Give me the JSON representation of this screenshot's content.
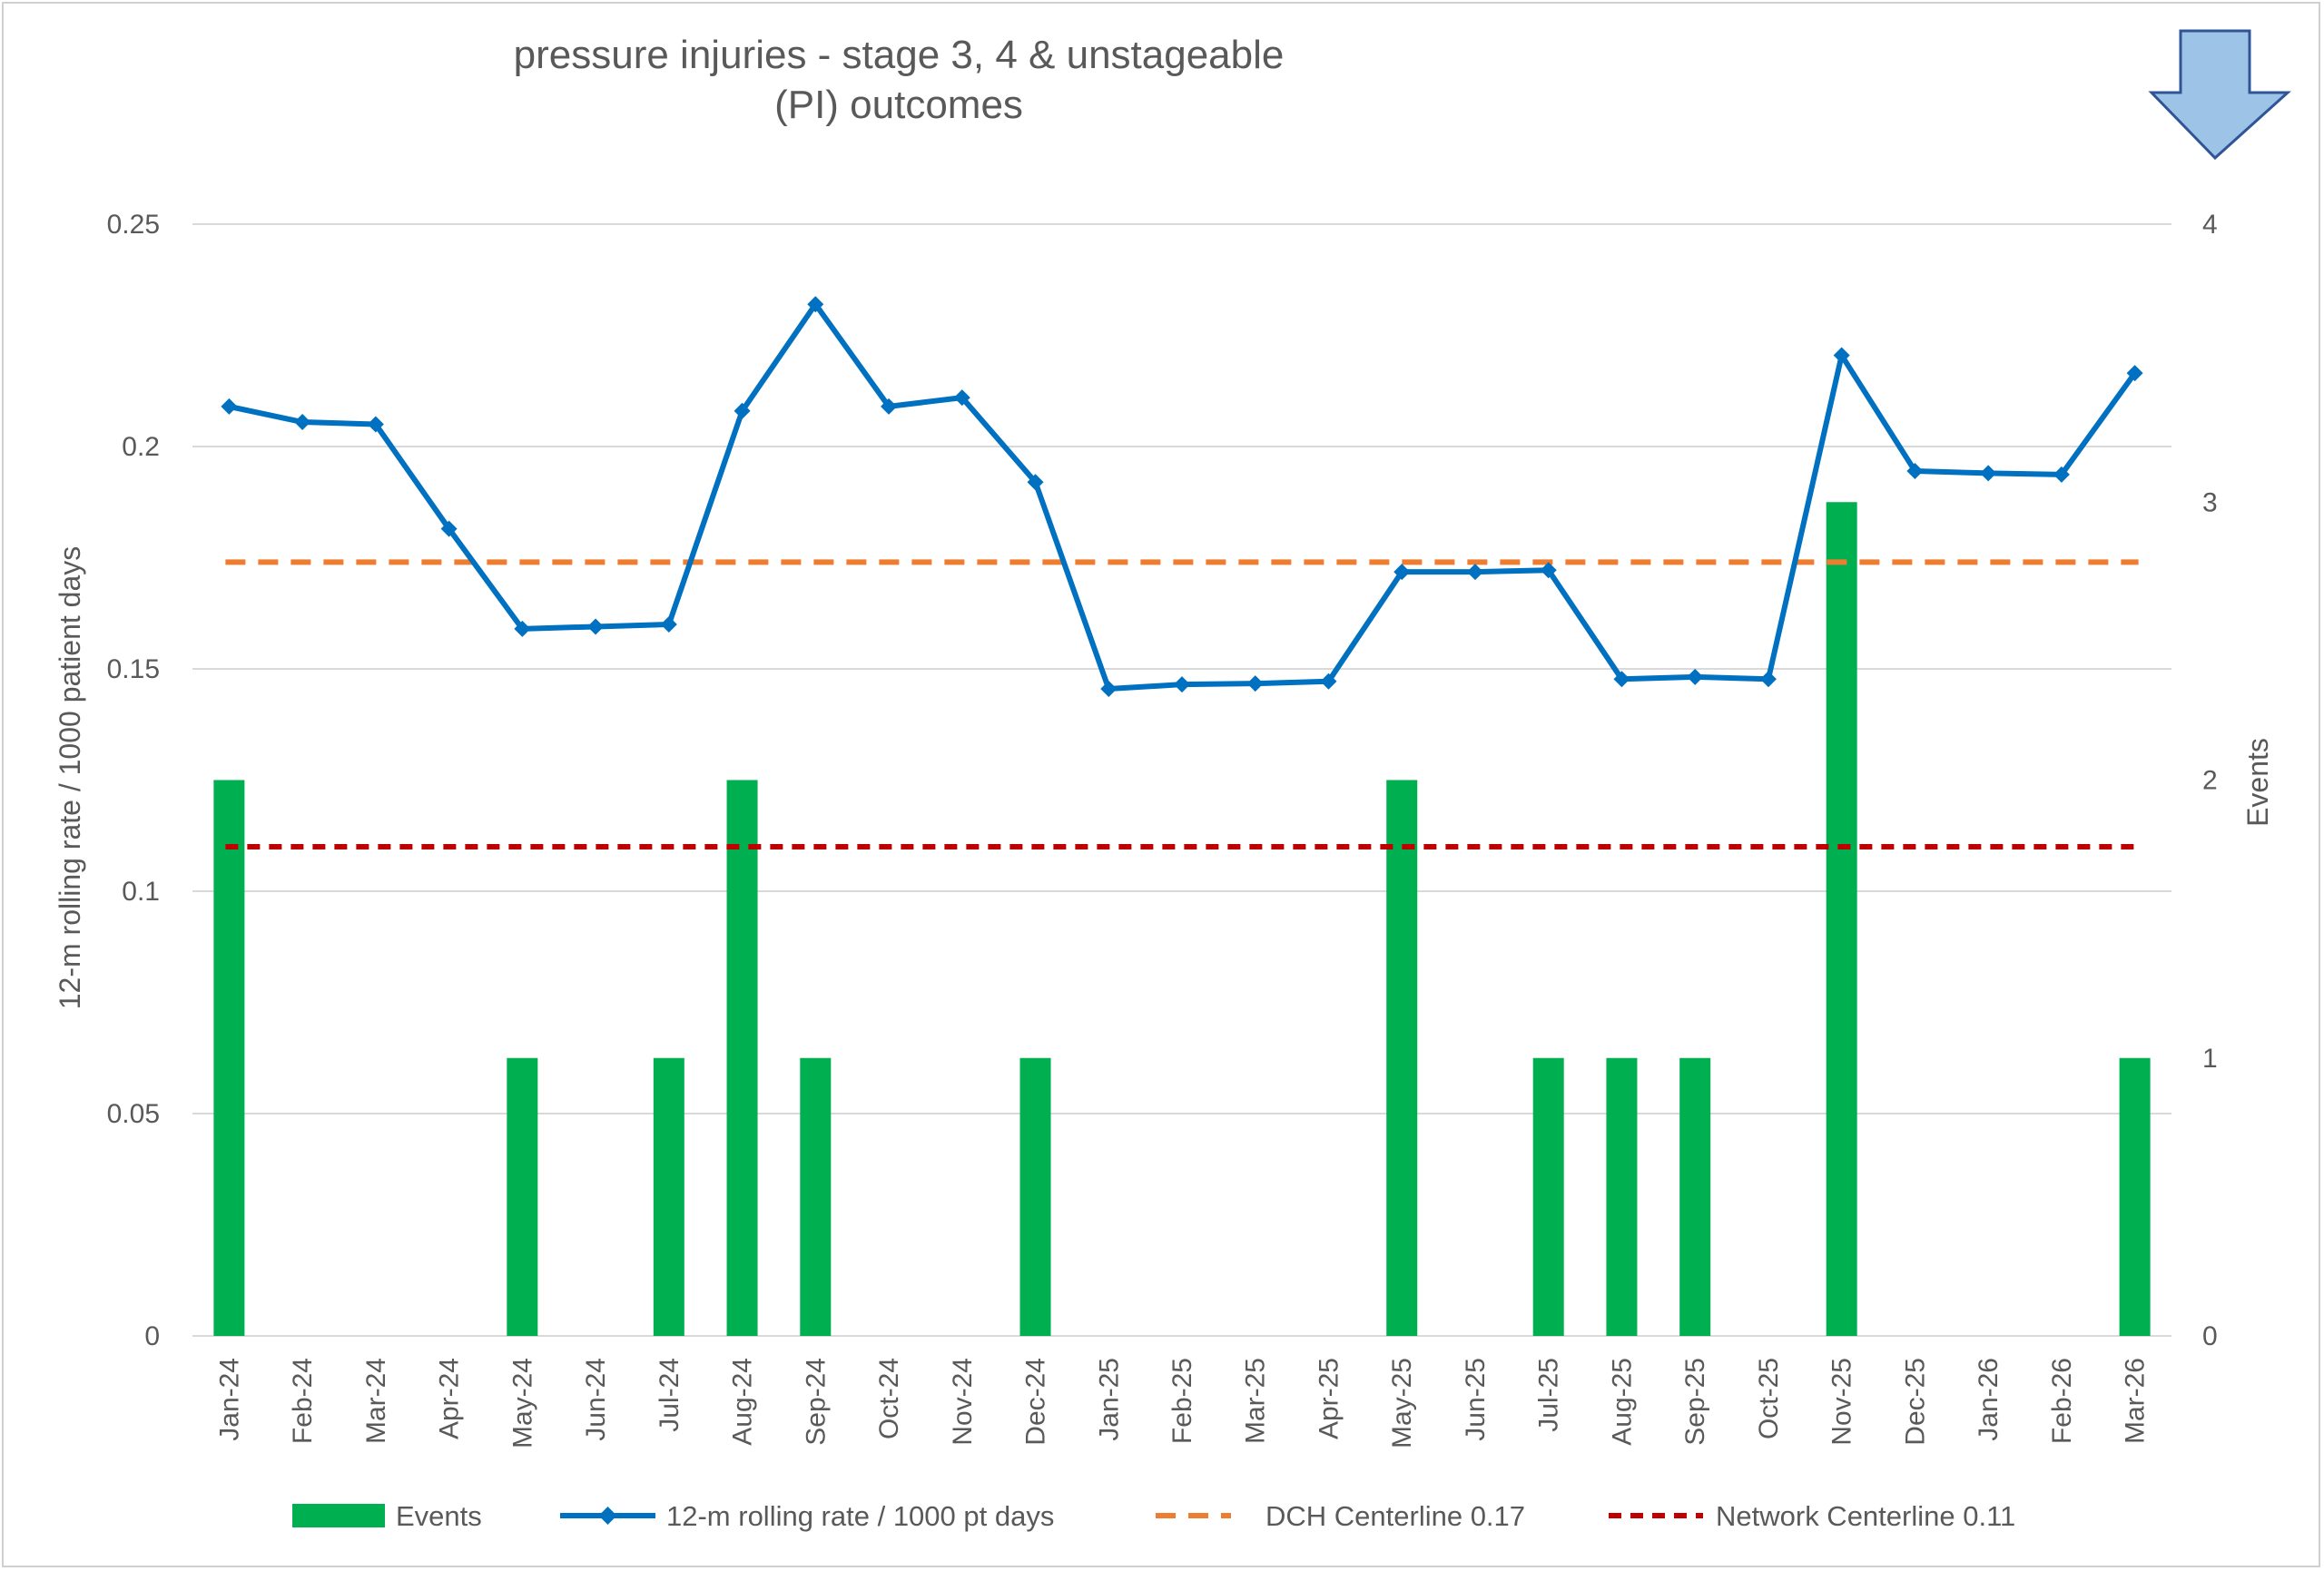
{
  "chart_data": {
    "type": "bar",
    "title_lines": [
      "pressure injuries - stage 3, 4 & unstageable",
      "(PI) outcomes"
    ],
    "y_left_label": "12-m rolling rate / 1000 patient days",
    "y_right_label": "Events",
    "y_left_range": [
      0,
      0.25
    ],
    "y_left_ticks": [
      "0",
      "0.05",
      "0.1",
      "0.15",
      "0.2",
      "0.25"
    ],
    "y_left_tick_values": [
      0,
      0.05,
      0.1,
      0.15,
      0.2,
      0.25
    ],
    "y_right_range": [
      0,
      4
    ],
    "y_right_ticks": [
      "0",
      "1",
      "2",
      "3",
      "4"
    ],
    "y_right_tick_values": [
      0,
      1,
      2,
      3,
      4
    ],
    "grid": true,
    "legend_position": "bottom",
    "categories": [
      "Jan-24",
      "Feb-24",
      "Mar-24",
      "Apr-24",
      "May-24",
      "Jun-24",
      "Jul-24",
      "Aug-24",
      "Sep-24",
      "Oct-24",
      "Nov-24",
      "Dec-24",
      "Jan-25",
      "Feb-25",
      "Mar-25",
      "Apr-25",
      "May-25",
      "Jun-25",
      "Jul-25",
      "Aug-25",
      "Sep-25",
      "Oct-25",
      "Nov-25",
      "Dec-25",
      "Jan-26",
      "Feb-26",
      "Mar-26"
    ],
    "series": [
      {
        "name": "Events",
        "kind": "bar",
        "axis": "right",
        "color": "#00b050",
        "values": [
          2,
          0,
          0,
          0,
          1,
          0,
          1,
          2,
          1,
          0,
          0,
          1,
          0,
          0,
          0,
          0,
          2,
          0,
          1,
          1,
          1,
          0,
          3,
          0,
          0,
          0,
          1
        ]
      },
      {
        "name": "12-m rolling rate / 1000 pt days",
        "kind": "line",
        "axis": "left",
        "color": "#0070c0",
        "marker": "diamond",
        "values": [
          0.209,
          0.2055,
          0.205,
          0.1815,
          0.159,
          0.1595,
          0.16,
          0.208,
          0.232,
          0.209,
          0.211,
          0.192,
          0.1455,
          0.1465,
          0.1467,
          0.1472,
          0.1718,
          0.1718,
          0.1722,
          0.1477,
          0.1482,
          0.1477,
          0.2205,
          0.1945,
          0.194,
          0.1937,
          0.2165
        ]
      },
      {
        "name": "DCH Centerline 0.17",
        "kind": "hline",
        "axis": "left",
        "color": "#ed7d31",
        "dash": "long",
        "value": 0.174
      },
      {
        "name": "Network Centerline 0.11",
        "kind": "hline",
        "axis": "left",
        "color": "#c00000",
        "dash": "short",
        "value": 0.11
      }
    ]
  },
  "indicator": {
    "icon": "down-arrow-icon",
    "fill": "#9dc3e6",
    "stroke": "#2f5597"
  }
}
